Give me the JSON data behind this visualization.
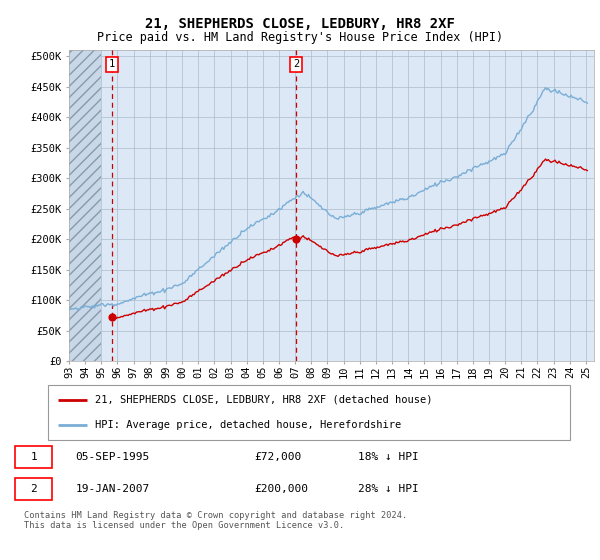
{
  "title": "21, SHEPHERDS CLOSE, LEDBURY, HR8 2XF",
  "subtitle": "Price paid vs. HM Land Registry's House Price Index (HPI)",
  "ylim": [
    0,
    510000
  ],
  "yticks": [
    0,
    50000,
    100000,
    150000,
    200000,
    250000,
    300000,
    350000,
    400000,
    450000,
    500000
  ],
  "ytick_labels": [
    "£0",
    "£50K",
    "£100K",
    "£150K",
    "£200K",
    "£250K",
    "£300K",
    "£350K",
    "£400K",
    "£450K",
    "£500K"
  ],
  "fig_bg_color": "#ffffff",
  "plot_bg_color": "#dce8f5",
  "hatch_bg_color": "#c8d8e8",
  "grid_color": "#aabccc",
  "red_line_color": "#cc0000",
  "blue_line_color": "#7aaed6",
  "sale1_date": 1995.67,
  "sale1_price": 72000,
  "sale2_date": 2007.05,
  "sale2_price": 200000,
  "legend_label1": "21, SHEPHERDS CLOSE, LEDBURY, HR8 2XF (detached house)",
  "legend_label2": "HPI: Average price, detached house, Herefordshire",
  "table_row1": [
    "1",
    "05-SEP-1995",
    "£72,000",
    "18% ↓ HPI"
  ],
  "table_row2": [
    "2",
    "19-JAN-2007",
    "£200,000",
    "28% ↓ HPI"
  ],
  "footer": "Contains HM Land Registry data © Crown copyright and database right 2024.\nThis data is licensed under the Open Government Licence v3.0.",
  "xmin": 1993,
  "xmax": 2025.5
}
